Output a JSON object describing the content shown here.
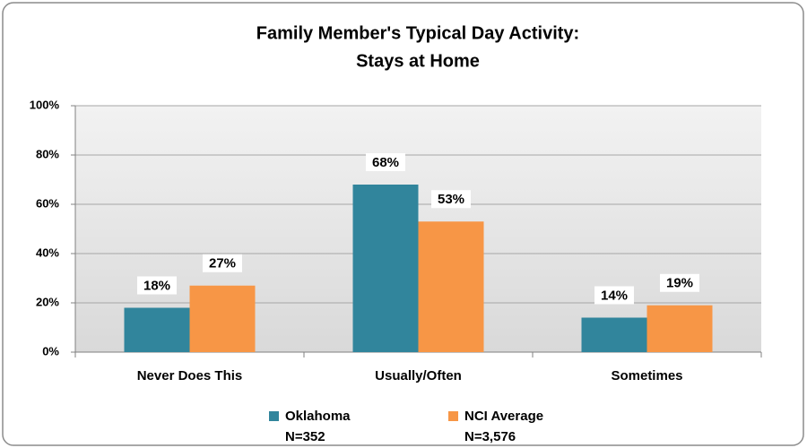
{
  "chart_data": {
    "type": "bar",
    "title": "Family Member's Typical Day Activity:",
    "subtitle": "Stays at Home",
    "categories": [
      "Never Does This",
      "Usually/Often",
      "Sometimes"
    ],
    "series": [
      {
        "name": "Oklahoma",
        "note": "N=352",
        "color": "#31859c",
        "values": [
          18,
          68,
          14
        ],
        "value_labels": [
          "18%",
          "68%",
          "14%"
        ]
      },
      {
        "name": "NCI Average",
        "note": "N=3,576",
        "color": "#f79646",
        "values": [
          27,
          53,
          19
        ],
        "value_labels": [
          "27%",
          "53%",
          "19%"
        ]
      }
    ],
    "ylim": [
      0,
      100
    ],
    "yticks": [
      {
        "value": 0,
        "label": "0%"
      },
      {
        "value": 20,
        "label": "20%"
      },
      {
        "value": 40,
        "label": "40%"
      },
      {
        "value": 60,
        "label": "60%"
      },
      {
        "value": 80,
        "label": "80%"
      },
      {
        "value": 100,
        "label": "100%"
      }
    ],
    "grid": true,
    "legend": "bottom"
  }
}
